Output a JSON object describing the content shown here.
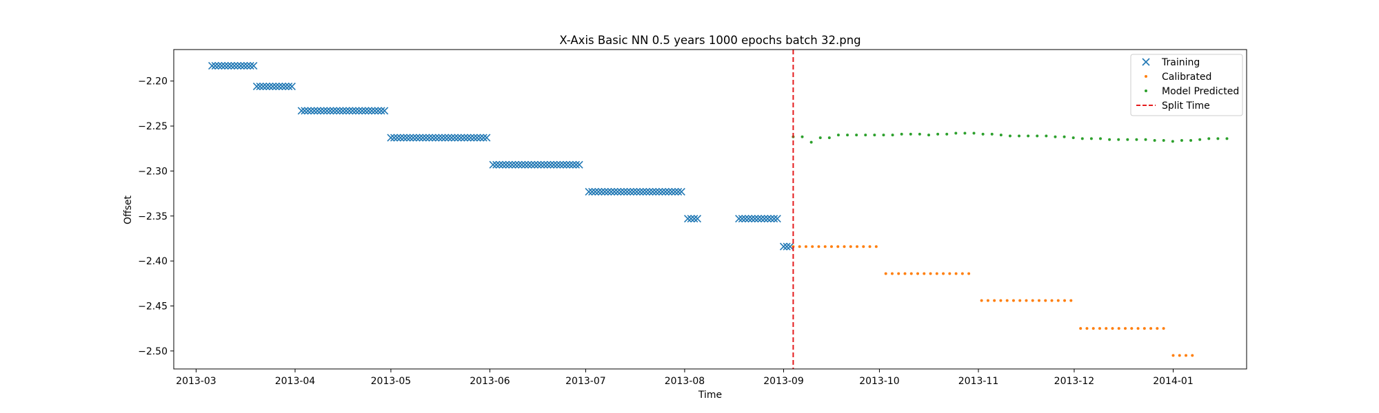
{
  "chart_data": {
    "type": "scatter",
    "title": "X-Axis Basic NN 0.5 years 1000 epochs batch 32.png",
    "xlabel": "Time",
    "ylabel": "Offset",
    "xlim": [
      "2013-02-22",
      "2014-01-24"
    ],
    "ylim": [
      -2.52,
      -2.165
    ],
    "x_ticks": [
      "2013-03-01",
      "2013-04-01",
      "2013-05-01",
      "2013-06-01",
      "2013-07-01",
      "2013-08-01",
      "2013-09-01",
      "2013-10-01",
      "2013-11-01",
      "2013-12-01",
      "2014-01-01"
    ],
    "x_tick_labels": [
      "2013-03",
      "2013-04",
      "2013-05",
      "2013-06",
      "2013-07",
      "2013-08",
      "2013-09",
      "2013-10",
      "2013-11",
      "2013-12",
      "2014-01"
    ],
    "y_ticks": [
      -2.2,
      -2.25,
      -2.3,
      -2.35,
      -2.4,
      -2.45,
      -2.5
    ],
    "y_tick_labels": [
      "−2.20",
      "−2.25",
      "−2.30",
      "−2.35",
      "−2.40",
      "−2.45",
      "−2.50"
    ],
    "split_time": "2013-09-04",
    "legend_position": "top-right",
    "series": [
      {
        "name": "Training",
        "marker": "x",
        "color": "#1f77b4",
        "segments": [
          {
            "start": "2013-03-06",
            "end": "2013-03-19",
            "y": -2.183
          },
          {
            "start": "2013-03-20",
            "end": "2013-03-31",
            "y": -2.206
          },
          {
            "start": "2013-04-03",
            "end": "2013-04-29",
            "y": -2.233
          },
          {
            "start": "2013-05-01",
            "end": "2013-05-31",
            "y": -2.263
          },
          {
            "start": "2013-06-02",
            "end": "2013-06-29",
            "y": -2.293
          },
          {
            "start": "2013-07-02",
            "end": "2013-07-31",
            "y": -2.323
          },
          {
            "start": "2013-08-02",
            "end": "2013-08-05",
            "y": -2.353
          },
          {
            "start": "2013-08-18",
            "end": "2013-08-30",
            "y": -2.353
          },
          {
            "start": "2013-09-01",
            "end": "2013-09-03",
            "y": -2.384
          }
        ]
      },
      {
        "name": "Calibrated",
        "marker": "dot",
        "color": "#ff7f0e",
        "segments": [
          {
            "start": "2013-09-04",
            "end": "2013-09-30",
            "y": -2.384
          },
          {
            "start": "2013-10-03",
            "end": "2013-10-30",
            "y": -2.414
          },
          {
            "start": "2013-11-02",
            "end": "2013-11-30",
            "y": -2.444
          },
          {
            "start": "2013-12-03",
            "end": "2013-12-30",
            "y": -2.475
          },
          {
            "start": "2014-01-01",
            "end": "2014-01-07",
            "y": -2.505
          }
        ]
      },
      {
        "name": "Model Predicted",
        "marker": "dot",
        "color": "#2ca02c",
        "x_start": "2013-09-04",
        "x_step_days": 2.83,
        "values": [
          -2.262,
          -2.262,
          -2.268,
          -2.263,
          -2.263,
          -2.26,
          -2.26,
          -2.26,
          -2.26,
          -2.26,
          -2.26,
          -2.26,
          -2.259,
          -2.259,
          -2.259,
          -2.26,
          -2.259,
          -2.259,
          -2.258,
          -2.258,
          -2.258,
          -2.259,
          -2.259,
          -2.26,
          -2.261,
          -2.261,
          -2.261,
          -2.261,
          -2.261,
          -2.262,
          -2.262,
          -2.263,
          -2.264,
          -2.264,
          -2.264,
          -2.265,
          -2.265,
          -2.265,
          -2.265,
          -2.265,
          -2.266,
          -2.266,
          -2.267,
          -2.266,
          -2.266,
          -2.265,
          -2.264,
          -2.264,
          -2.264
        ]
      }
    ],
    "split_line": {
      "name": "Split Time",
      "color": "#e41a1c",
      "style": "dashed"
    }
  }
}
